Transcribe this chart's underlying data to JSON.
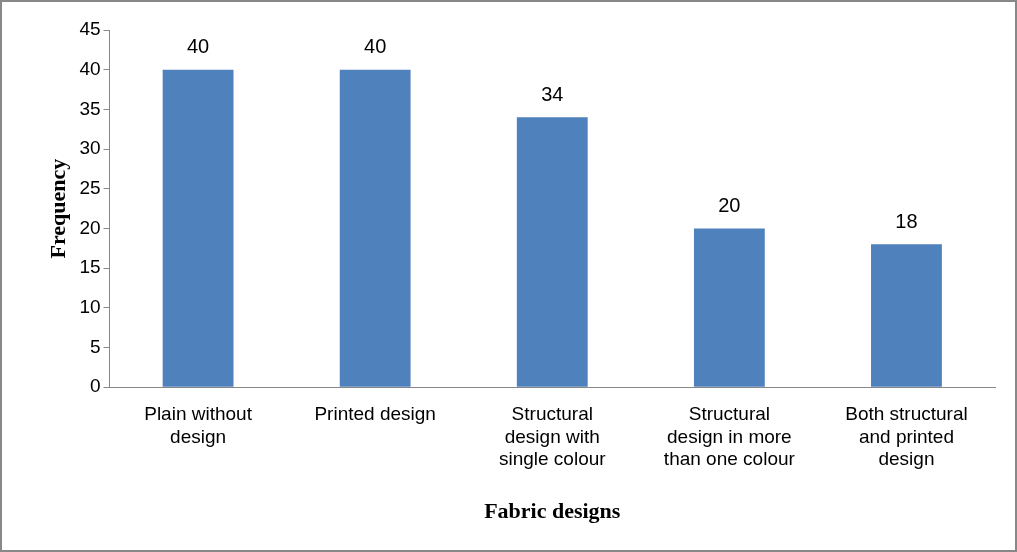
{
  "chart_data": {
    "type": "bar",
    "xlabel": "Fabric designs",
    "ylabel": "Frequency",
    "categories": [
      "Plain without design",
      "Printed design",
      "Structural design with single colour",
      "Structural design in more than one colour",
      "Both structural and printed design"
    ],
    "values": [
      40,
      40,
      34,
      20,
      18
    ],
    "color": "#4f81bd",
    "ylim": [
      0,
      45
    ],
    "yticks": [
      0,
      5,
      10,
      15,
      20,
      25,
      30,
      35,
      40,
      45
    ],
    "grid": false,
    "legend": false,
    "data_labels": true
  }
}
